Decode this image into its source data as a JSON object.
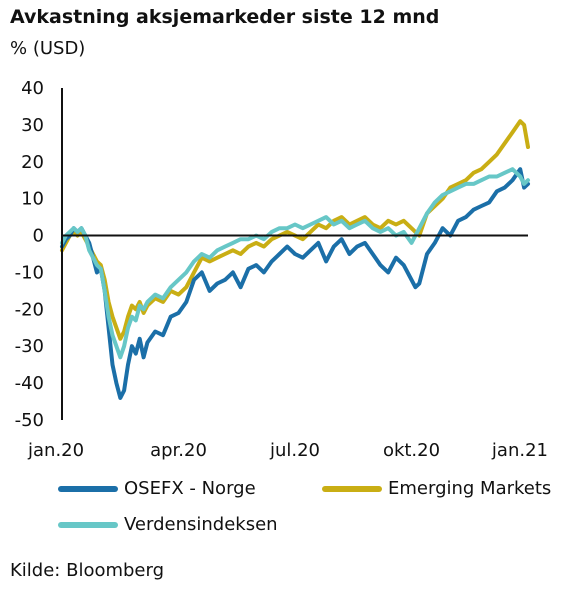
{
  "header": {
    "title": "Avkastning aksjemarkeder siste 12 mnd",
    "unit": "% (USD)"
  },
  "source": "Kilde: Bloomberg",
  "colors": {
    "osefx": "#1b6fa8",
    "em": "#c9ae14",
    "world": "#67c7c7"
  },
  "chart_data": {
    "type": "line",
    "title": "Avkastning aksjemarkeder siste 12 mnd",
    "ylabel": "% (USD)",
    "xlabel": "",
    "ylim": [
      -50,
      40
    ],
    "y_ticks": [
      40,
      30,
      20,
      10,
      0,
      -10,
      -20,
      -30,
      -40,
      -50
    ],
    "x_ticks": [
      "jan.20",
      "apr.20",
      "jul.20",
      "okt.20",
      "jan.21"
    ],
    "x_tick_months": [
      0,
      3,
      6,
      9,
      12
    ],
    "legend_position": "bottom",
    "grid": false,
    "series": [
      {
        "name": "OSEFX - Norge",
        "color_key": "osefx",
        "x": [
          0,
          0.1,
          0.2,
          0.3,
          0.4,
          0.5,
          0.6,
          0.7,
          0.8,
          0.9,
          1.0,
          1.1,
          1.2,
          1.3,
          1.4,
          1.5,
          1.6,
          1.7,
          1.8,
          1.9,
          2.0,
          2.1,
          2.2,
          2.4,
          2.6,
          2.8,
          3.0,
          3.2,
          3.4,
          3.6,
          3.8,
          4.0,
          4.2,
          4.4,
          4.6,
          4.8,
          5.0,
          5.2,
          5.4,
          5.6,
          5.8,
          6.0,
          6.2,
          6.4,
          6.6,
          6.8,
          7.0,
          7.2,
          7.4,
          7.6,
          7.8,
          8.0,
          8.2,
          8.4,
          8.6,
          8.8,
          9.0,
          9.1,
          9.2,
          9.4,
          9.6,
          9.8,
          10.0,
          10.2,
          10.4,
          10.6,
          10.8,
          11.0,
          11.2,
          11.4,
          11.6,
          11.8,
          11.9,
          12.0
        ],
        "values": [
          -3,
          -1,
          0,
          2,
          1,
          2,
          0,
          -2,
          -6,
          -10,
          -9,
          -15,
          -25,
          -35,
          -40,
          -44,
          -42,
          -35,
          -30,
          -32,
          -28,
          -33,
          -29,
          -26,
          -27,
          -22,
          -21,
          -18,
          -12,
          -10,
          -15,
          -13,
          -12,
          -10,
          -14,
          -9,
          -8,
          -10,
          -7,
          -5,
          -3,
          -5,
          -6,
          -4,
          -2,
          -7,
          -3,
          -1,
          -5,
          -3,
          -2,
          -5,
          -8,
          -10,
          -6,
          -8,
          -12,
          -14,
          -13,
          -5,
          -2,
          2,
          0,
          4,
          5,
          7,
          8,
          9,
          12,
          13,
          15,
          18,
          13,
          14
        ]
      },
      {
        "name": "Emerging Markets",
        "color_key": "em",
        "x": [
          0,
          0.1,
          0.2,
          0.3,
          0.4,
          0.5,
          0.6,
          0.7,
          0.8,
          0.9,
          1.0,
          1.1,
          1.2,
          1.3,
          1.4,
          1.5,
          1.6,
          1.7,
          1.8,
          1.9,
          2.0,
          2.1,
          2.2,
          2.4,
          2.6,
          2.8,
          3.0,
          3.2,
          3.4,
          3.6,
          3.8,
          4.0,
          4.2,
          4.4,
          4.6,
          4.8,
          5.0,
          5.2,
          5.4,
          5.6,
          5.8,
          6.0,
          6.2,
          6.4,
          6.6,
          6.8,
          7.0,
          7.2,
          7.4,
          7.6,
          7.8,
          8.0,
          8.2,
          8.4,
          8.6,
          8.8,
          9.0,
          9.1,
          9.2,
          9.4,
          9.6,
          9.8,
          10.0,
          10.2,
          10.4,
          10.6,
          10.8,
          11.0,
          11.2,
          11.4,
          11.6,
          11.8,
          11.9,
          12.0
        ],
        "values": [
          -4,
          -2,
          0,
          1,
          0,
          1,
          -1,
          -3,
          -5,
          -7,
          -8,
          -12,
          -18,
          -22,
          -25,
          -28,
          -26,
          -22,
          -19,
          -20,
          -18,
          -21,
          -19,
          -17,
          -18,
          -15,
          -16,
          -14,
          -10,
          -6,
          -7,
          -6,
          -5,
          -4,
          -5,
          -3,
          -2,
          -3,
          -1,
          0,
          1,
          0,
          -1,
          1,
          3,
          2,
          4,
          5,
          3,
          4,
          5,
          3,
          2,
          4,
          3,
          4,
          2,
          1,
          0,
          6,
          8,
          10,
          13,
          14,
          15,
          17,
          18,
          20,
          22,
          25,
          28,
          31,
          30,
          24
        ]
      },
      {
        "name": "Verdensindeksen",
        "color_key": "world",
        "x": [
          0,
          0.1,
          0.2,
          0.3,
          0.4,
          0.5,
          0.6,
          0.7,
          0.8,
          0.9,
          1.0,
          1.1,
          1.2,
          1.3,
          1.4,
          1.5,
          1.6,
          1.7,
          1.8,
          1.9,
          2.0,
          2.1,
          2.2,
          2.4,
          2.6,
          2.8,
          3.0,
          3.2,
          3.4,
          3.6,
          3.8,
          4.0,
          4.2,
          4.4,
          4.6,
          4.8,
          5.0,
          5.2,
          5.4,
          5.6,
          5.8,
          6.0,
          6.2,
          6.4,
          6.6,
          6.8,
          7.0,
          7.2,
          7.4,
          7.6,
          7.8,
          8.0,
          8.2,
          8.4,
          8.6,
          8.8,
          9.0,
          9.1,
          9.2,
          9.4,
          9.6,
          9.8,
          10.0,
          10.2,
          10.4,
          10.6,
          10.8,
          11.0,
          11.2,
          11.4,
          11.6,
          11.8,
          11.9,
          12.0
        ],
        "values": [
          -2,
          0,
          1,
          2,
          1,
          2,
          0,
          -4,
          -6,
          -8,
          -9,
          -15,
          -22,
          -27,
          -30,
          -33,
          -30,
          -25,
          -22,
          -23,
          -19,
          -20,
          -18,
          -16,
          -17,
          -14,
          -12,
          -10,
          -7,
          -5,
          -6,
          -4,
          -3,
          -2,
          -1,
          -1,
          0,
          -1,
          1,
          2,
          2,
          3,
          2,
          3,
          4,
          5,
          3,
          4,
          2,
          3,
          4,
          2,
          1,
          2,
          0,
          1,
          -2,
          0,
          2,
          6,
          9,
          11,
          12,
          13,
          14,
          14,
          15,
          16,
          16,
          17,
          18,
          16,
          14,
          15
        ]
      }
    ]
  }
}
